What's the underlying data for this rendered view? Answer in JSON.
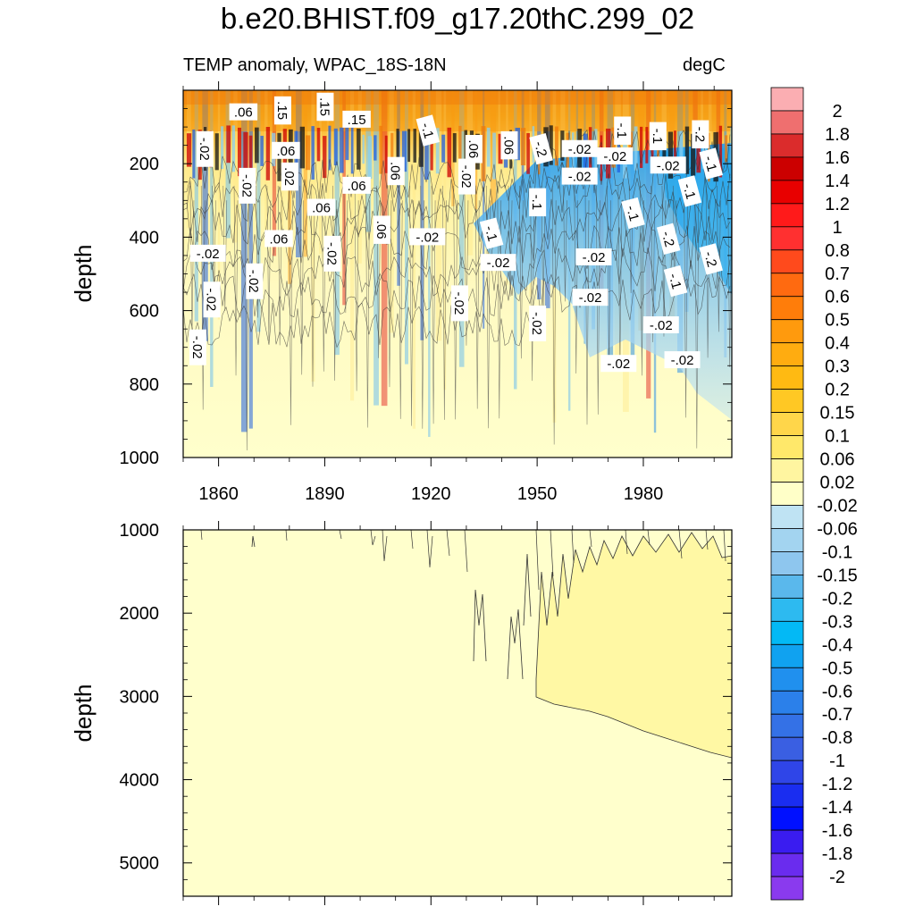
{
  "chart_data": {
    "type": "heatmap",
    "title": "b.e20.BHIST.f09_g17.20thC.299_02",
    "subtitle_left": "TEMP anomaly, WPAC_18S-18N",
    "subtitle_right": "degC",
    "xlabel": "",
    "ylabel": "depth",
    "xlim": [
      1850,
      2005
    ],
    "x_ticks": [
      1860,
      1890,
      1920,
      1950,
      1980
    ],
    "panels": [
      {
        "name": "upper-ocean",
        "ylim": [
          0,
          1000
        ],
        "y_ticks": [
          200,
          400,
          600,
          800,
          1000
        ],
        "contour_labels": [
          {
            "x": 1867,
            "depth": 60,
            "text": ".06"
          },
          {
            "x": 1878,
            "depth": 55,
            "text": ".15"
          },
          {
            "x": 1890,
            "depth": 45,
            "text": ".15"
          },
          {
            "x": 1899,
            "depth": 80,
            "text": ".15"
          },
          {
            "x": 1856,
            "depth": 160,
            "text": "-.02"
          },
          {
            "x": 1879,
            "depth": 165,
            "text": ".06"
          },
          {
            "x": 1919,
            "depth": 110,
            "text": "-.1"
          },
          {
            "x": 1932,
            "depth": 160,
            "text": ".06"
          },
          {
            "x": 1942,
            "depth": 150,
            "text": ".06"
          },
          {
            "x": 1951,
            "depth": 160,
            "text": "-.2"
          },
          {
            "x": 1962,
            "depth": 160,
            "text": "-.02"
          },
          {
            "x": 1974,
            "depth": 110,
            "text": "-.1"
          },
          {
            "x": 1984,
            "depth": 125,
            "text": "-.1"
          },
          {
            "x": 1996,
            "depth": 120,
            "text": "-.2"
          },
          {
            "x": 1880,
            "depth": 235,
            "text": ".02"
          },
          {
            "x": 1868,
            "depth": 260,
            "text": "-.02"
          },
          {
            "x": 1899,
            "depth": 260,
            "text": ".06"
          },
          {
            "x": 1910,
            "depth": 220,
            "text": ".06"
          },
          {
            "x": 1930,
            "depth": 235,
            "text": "-.02"
          },
          {
            "x": 1962,
            "depth": 235,
            "text": "-.02"
          },
          {
            "x": 1972,
            "depth": 180,
            "text": "-.02"
          },
          {
            "x": 1987,
            "depth": 205,
            "text": "-.02"
          },
          {
            "x": 1999,
            "depth": 200,
            "text": "-.1"
          },
          {
            "x": 1950,
            "depth": 305,
            "text": "-.1"
          },
          {
            "x": 1889,
            "depth": 320,
            "text": ".06"
          },
          {
            "x": 1993,
            "depth": 275,
            "text": "-.1"
          },
          {
            "x": 1977,
            "depth": 335,
            "text": "-.1"
          },
          {
            "x": 1906,
            "depth": 380,
            "text": ".06"
          },
          {
            "x": 1877,
            "depth": 405,
            "text": ".06"
          },
          {
            "x": 1937,
            "depth": 390,
            "text": "-.1"
          },
          {
            "x": 1919,
            "depth": 400,
            "text": "-.02"
          },
          {
            "x": 1987,
            "depth": 405,
            "text": "-.2"
          },
          {
            "x": 1857,
            "depth": 445,
            "text": "-.02"
          },
          {
            "x": 1892,
            "depth": 445,
            "text": "-.02"
          },
          {
            "x": 1966,
            "depth": 455,
            "text": "-.02"
          },
          {
            "x": 1939,
            "depth": 470,
            "text": "-.02"
          },
          {
            "x": 1999,
            "depth": 460,
            "text": "-.2"
          },
          {
            "x": 1870,
            "depth": 520,
            "text": "-.02"
          },
          {
            "x": 1989,
            "depth": 520,
            "text": "-.1"
          },
          {
            "x": 1858,
            "depth": 570,
            "text": "-.02"
          },
          {
            "x": 1965,
            "depth": 565,
            "text": "-.02"
          },
          {
            "x": 1928,
            "depth": 580,
            "text": "-.02"
          },
          {
            "x": 1950,
            "depth": 635,
            "text": "-.02"
          },
          {
            "x": 1985,
            "depth": 640,
            "text": "-.02"
          },
          {
            "x": 1854,
            "depth": 700,
            "text": "-.02"
          },
          {
            "x": 1973,
            "depth": 745,
            "text": "-.02"
          },
          {
            "x": 1991,
            "depth": 735,
            "text": "-.02"
          }
        ]
      },
      {
        "name": "deep-ocean",
        "ylim": [
          1000,
          5400
        ],
        "y_ticks": [
          1000,
          2000,
          3000,
          4000,
          5000
        ],
        "contour_labels": []
      }
    ],
    "colorbar": {
      "levels": [
        "2",
        "1.8",
        "1.6",
        "1.4",
        "1.2",
        "1",
        "0.8",
        "0.7",
        "0.6",
        "0.5",
        "0.4",
        "0.3",
        "0.2",
        "0.15",
        "0.1",
        "0.06",
        "0.02",
        "-0.02",
        "-0.06",
        "-0.1",
        "-0.15",
        "-0.2",
        "-0.3",
        "-0.4",
        "-0.5",
        "-0.6",
        "-0.7",
        "-0.8",
        "-1",
        "-1.2",
        "-1.4",
        "-1.6",
        "-1.8",
        "-2"
      ],
      "colors": [
        "#fbaeb2",
        "#ef6f6f",
        "#db2c2c",
        "#cc0000",
        "#e80000",
        "#ff1a1a",
        "#ff3030",
        "#ff4a1c",
        "#ff6a10",
        "#ff7d0a",
        "#ff9a0d",
        "#ffac10",
        "#ffba12",
        "#ffc824",
        "#ffd64a",
        "#ffe86a",
        "#fff5a0",
        "#ffffc8",
        "#bfe3f3",
        "#a3d4f0",
        "#8ec6ee",
        "#5ab8ec",
        "#2dbaf0",
        "#03b9f5",
        "#10a2f0",
        "#2090ee",
        "#2b80ea",
        "#3471e6",
        "#3a5fe2",
        "#2f45e8",
        "#1a2df0",
        "#0010ff",
        "#3a1cf0",
        "#6a2cee",
        "#8a3aee"
      ]
    }
  }
}
